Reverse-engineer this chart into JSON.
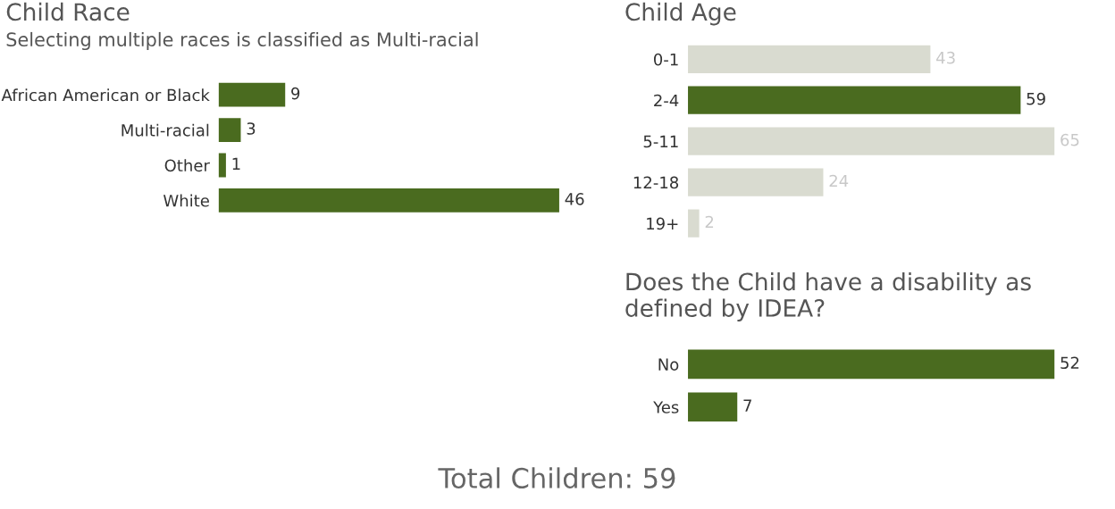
{
  "chart_data": [
    {
      "type": "bar",
      "orientation": "horizontal",
      "title": "Child Race",
      "subtitle": "Selecting multiple races is classified as Multi-racial",
      "categories": [
        "African American or Black",
        "Multi-racial",
        "Other",
        "White"
      ],
      "values": [
        9,
        3,
        1,
        46
      ],
      "color": "#4a6b1f",
      "data_labels": true,
      "grid": false
    },
    {
      "type": "bar",
      "orientation": "horizontal",
      "title": "Child Age",
      "categories": [
        "0-1",
        "2-4",
        "5-11",
        "12-18",
        "19+"
      ],
      "values": [
        43,
        59,
        65,
        24,
        2
      ],
      "colors": [
        "#d9dbd0",
        "#4a6b1f",
        "#d9dbd0",
        "#d9dbd0",
        "#d9dbd0"
      ],
      "data_labels": true,
      "grid": false
    },
    {
      "type": "bar",
      "orientation": "horizontal",
      "title": "Does the Child have a disability as defined by IDEA?",
      "categories": [
        "No",
        "Yes"
      ],
      "values": [
        52,
        7
      ],
      "color": "#4a6b1f",
      "data_labels": true,
      "grid": false,
      "annotations": [
        "Total Children: 59"
      ]
    }
  ]
}
